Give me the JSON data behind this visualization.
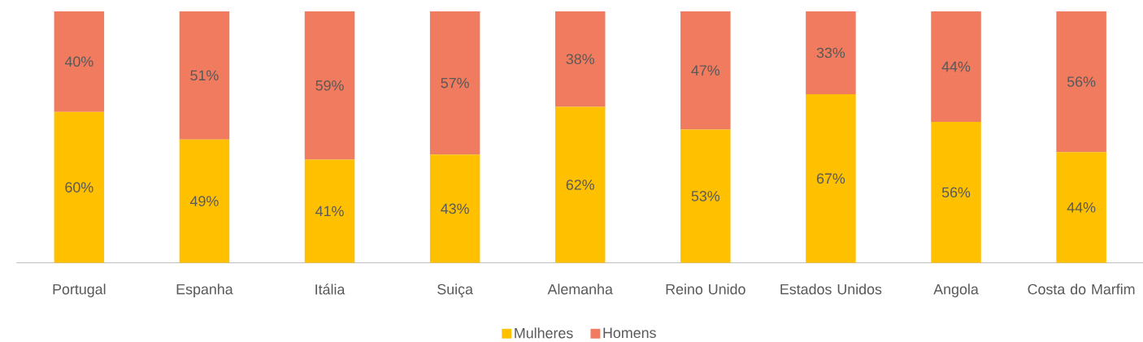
{
  "chart_data": {
    "type": "bar",
    "stacked": true,
    "legend": "bottom",
    "categories": [
      "Portugal",
      "Espanha",
      "Itália",
      "Suiça",
      "Alemanha",
      "Reino Unido",
      "Estados Unidos",
      "Angola",
      "Costa do Marfim"
    ],
    "series": [
      {
        "name": "Mulheres",
        "color": "#ffc000",
        "values": [
          60,
          49,
          41,
          43,
          62,
          53,
          67,
          56,
          44
        ],
        "value_labels": [
          "60%",
          "49%",
          "41%",
          "43%",
          "62%",
          "53%",
          "67%",
          "56%",
          "44%"
        ]
      },
      {
        "name": "Homens",
        "color": "#f07b5e",
        "values": [
          40,
          51,
          59,
          57,
          38,
          47,
          33,
          44,
          56
        ],
        "value_labels": [
          "40%",
          "51%",
          "59%",
          "57%",
          "38%",
          "47%",
          "33%",
          "44%",
          "56%"
        ]
      }
    ]
  }
}
